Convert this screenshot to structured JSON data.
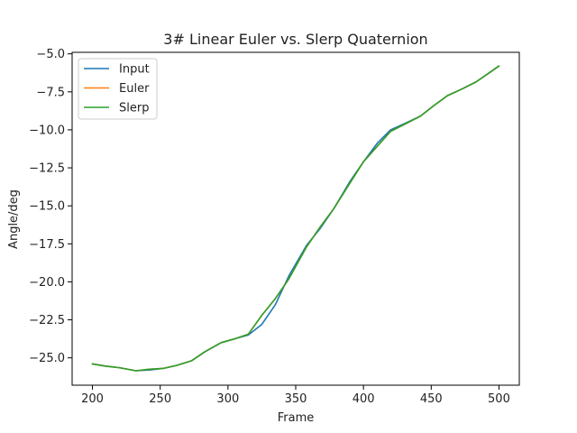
{
  "chart_data": {
    "type": "line",
    "title": "3# Linear Euler vs. Slerp Quaternion",
    "xlabel": "Frame",
    "ylabel": "Angle/deg",
    "xlim": [
      185,
      515
    ],
    "ylim": [
      -26.8,
      -4.9
    ],
    "xticks": [
      200,
      250,
      300,
      350,
      400,
      450,
      500
    ],
    "yticks": [
      -25.0,
      -22.5,
      -20.0,
      -17.5,
      -15.0,
      -12.5,
      -10.0,
      -7.5,
      -5.0
    ],
    "xtick_labels": [
      "200",
      "250",
      "300",
      "350",
      "400",
      "450",
      "500"
    ],
    "ytick_labels": [
      "−25.0",
      "−22.5",
      "−20.0",
      "−17.5",
      "−15.0",
      "−12.5",
      "−10.0",
      "−7.5",
      "−5.0"
    ],
    "grid": false,
    "legend": "top-left",
    "series": [
      {
        "name": "Input",
        "color": "#1f77b4",
        "x": [
          200,
          210,
          220,
          232,
          242,
          252,
          262,
          273,
          283,
          295,
          305,
          315,
          325,
          335,
          345,
          358,
          368,
          378,
          390,
          400,
          410,
          420,
          430,
          442,
          452,
          462,
          473,
          483,
          492,
          500
        ],
        "y": [
          -25.4,
          -25.55,
          -25.65,
          -25.85,
          -25.8,
          -25.7,
          -25.5,
          -25.2,
          -24.6,
          -24.0,
          -23.75,
          -23.5,
          -22.8,
          -21.5,
          -19.6,
          -17.6,
          -16.5,
          -15.2,
          -13.4,
          -12.1,
          -10.9,
          -10.0,
          -9.6,
          -9.1,
          -8.4,
          -7.75,
          -7.3,
          -6.85,
          -6.3,
          -5.8
        ]
      },
      {
        "name": "Euler",
        "color": "#ff7f0e",
        "x": [
          200,
          210,
          220,
          232,
          242,
          252,
          262,
          273,
          283,
          295,
          305,
          315,
          325,
          335,
          345,
          358,
          368,
          378,
          390,
          400,
          410,
          420,
          430,
          442,
          452,
          462,
          473,
          483,
          492,
          500
        ],
        "y": [
          -25.4,
          -25.55,
          -25.65,
          -25.85,
          -25.75,
          -25.7,
          -25.5,
          -25.2,
          -24.6,
          -24.0,
          -23.75,
          -23.45,
          -22.2,
          -21.1,
          -19.8,
          -17.7,
          -16.4,
          -15.2,
          -13.5,
          -12.1,
          -11.1,
          -10.1,
          -9.65,
          -9.1,
          -8.4,
          -7.75,
          -7.3,
          -6.85,
          -6.3,
          -5.8
        ]
      },
      {
        "name": "Slerp",
        "color": "#2ca02c",
        "x": [
          200,
          210,
          220,
          232,
          242,
          252,
          262,
          273,
          283,
          295,
          305,
          315,
          325,
          335,
          345,
          358,
          368,
          378,
          390,
          400,
          410,
          420,
          430,
          442,
          452,
          462,
          473,
          483,
          492,
          500
        ],
        "y": [
          -25.4,
          -25.55,
          -25.65,
          -25.85,
          -25.75,
          -25.7,
          -25.5,
          -25.2,
          -24.6,
          -24.0,
          -23.75,
          -23.45,
          -22.2,
          -21.1,
          -19.8,
          -17.7,
          -16.4,
          -15.2,
          -13.5,
          -12.1,
          -11.1,
          -10.1,
          -9.65,
          -9.1,
          -8.4,
          -7.75,
          -7.3,
          -6.85,
          -6.3,
          -5.8
        ]
      }
    ]
  }
}
